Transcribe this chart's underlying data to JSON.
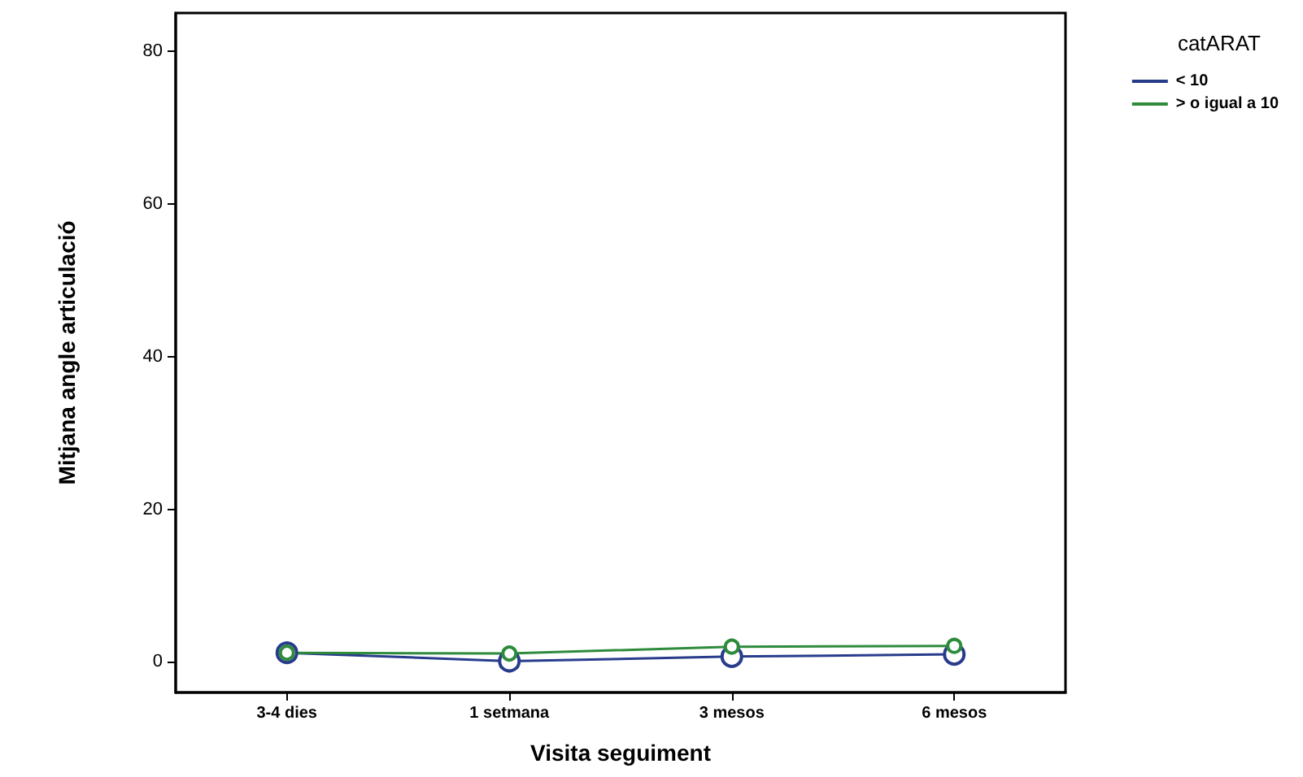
{
  "chart_data": {
    "type": "line",
    "xlabel": "Visita seguiment",
    "ylabel": "Mitjana angle articulació",
    "legend_title": "catARAT",
    "categories": [
      "3-4 dies",
      "1 setmana",
      "3 mesos",
      "6 mesos"
    ],
    "series": [
      {
        "name": "< 10",
        "color": "#283c8c",
        "values": [
          1.2,
          0.1,
          0.7,
          1.0
        ]
      },
      {
        "name": "> o igual a 10",
        "color": "#2e8b3c",
        "values": [
          1.2,
          1.1,
          2.0,
          2.1
        ]
      }
    ],
    "ylim": [
      -4,
      85
    ],
    "yticks": [
      0,
      20,
      40,
      60,
      80
    ],
    "grid": false,
    "legend": "top right",
    "marker": "circle",
    "line_style": "solid"
  }
}
